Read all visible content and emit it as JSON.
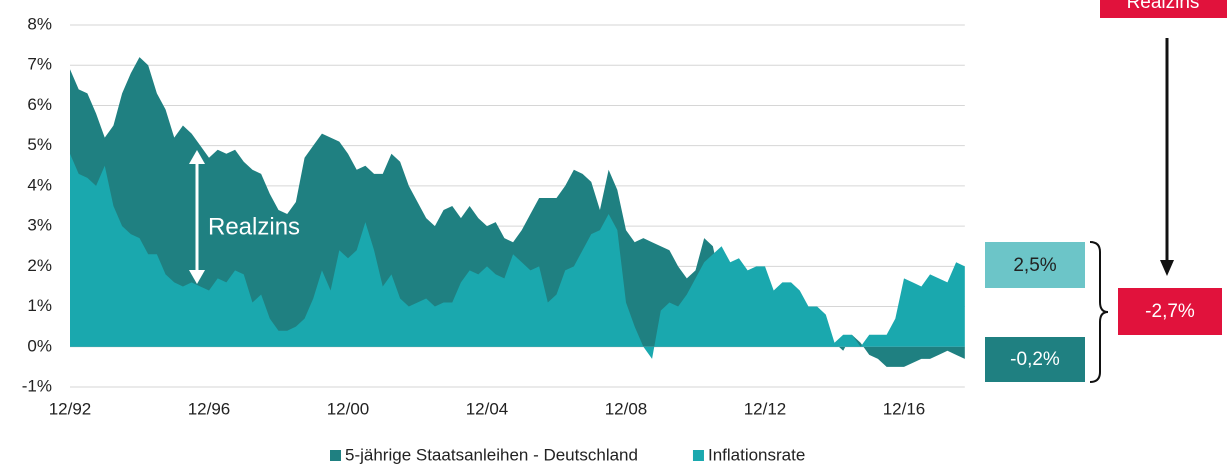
{
  "chart_data": {
    "type": "area",
    "categories": [
      "12/92",
      null,
      null,
      null,
      null,
      null,
      null,
      null,
      null,
      null,
      null,
      null,
      null,
      null,
      null,
      null,
      "12/96",
      null,
      null,
      null,
      null,
      null,
      null,
      null,
      null,
      null,
      null,
      null,
      null,
      null,
      null,
      null,
      "12/00",
      null,
      null,
      null,
      null,
      null,
      null,
      null,
      null,
      null,
      null,
      null,
      null,
      null,
      null,
      null,
      "12/04",
      null,
      null,
      null,
      null,
      null,
      null,
      null,
      null,
      null,
      null,
      null,
      null,
      null,
      null,
      null,
      "12/08",
      null,
      null,
      null,
      null,
      null,
      null,
      null,
      null,
      null,
      null,
      null,
      null,
      null,
      null,
      null,
      "12/12",
      null,
      null,
      null,
      null,
      null,
      null,
      null,
      null,
      null,
      null,
      null,
      null,
      null,
      null,
      null,
      "12/16",
      null,
      null,
      null,
      null,
      null,
      null,
      null
    ],
    "series": [
      {
        "name": "5-jährige Staatsanleihen - Deutschland",
        "color": "#1f8081",
        "values": [
          6.9,
          6.4,
          6.3,
          5.8,
          5.2,
          5.5,
          6.3,
          6.8,
          7.2,
          7.0,
          6.3,
          5.9,
          5.2,
          5.5,
          5.3,
          5.0,
          4.7,
          4.9,
          4.8,
          4.9,
          4.6,
          4.4,
          4.3,
          3.8,
          3.4,
          3.3,
          3.6,
          4.7,
          5.0,
          5.3,
          5.2,
          5.1,
          4.8,
          4.4,
          4.5,
          4.3,
          4.3,
          4.8,
          4.6,
          4.0,
          3.6,
          3.2,
          3.0,
          3.4,
          3.5,
          3.2,
          3.5,
          3.2,
          3.0,
          3.1,
          2.7,
          2.6,
          2.9,
          3.3,
          3.7,
          3.7,
          3.7,
          4.0,
          4.4,
          4.3,
          4.1,
          3.4,
          4.4,
          3.9,
          2.9,
          2.6,
          2.7,
          2.6,
          2.5,
          2.4,
          2.0,
          1.7,
          1.9,
          2.7,
          2.5,
          1.5,
          1.0,
          0.9,
          0.5,
          0.5,
          0.3,
          0.5,
          0.6,
          0.9,
          0.9,
          0.8,
          0.6,
          0.3,
          0.1,
          -0.1,
          0.3,
          0.1,
          -0.2,
          -0.3,
          -0.5,
          -0.5,
          -0.5,
          -0.4,
          -0.3,
          -0.3,
          -0.2,
          -0.1,
          -0.2,
          -0.3
        ]
      },
      {
        "name": "Inflationsrate",
        "color": "#1aa8ae",
        "values": [
          4.8,
          4.3,
          4.2,
          4.0,
          4.5,
          3.5,
          3.0,
          2.8,
          2.7,
          2.3,
          2.3,
          1.8,
          1.6,
          1.5,
          1.6,
          1.5,
          1.4,
          1.7,
          1.6,
          1.9,
          1.8,
          1.1,
          1.3,
          0.7,
          0.4,
          0.4,
          0.5,
          0.7,
          1.2,
          1.9,
          1.4,
          2.4,
          2.2,
          2.4,
          3.1,
          2.4,
          1.5,
          1.8,
          1.2,
          1.0,
          1.1,
          1.2,
          1.0,
          1.1,
          1.1,
          1.6,
          1.9,
          1.8,
          2.0,
          1.8,
          1.7,
          2.3,
          2.1,
          1.9,
          2.0,
          1.1,
          1.3,
          1.9,
          2.0,
          2.4,
          2.8,
          2.9,
          3.3,
          2.9,
          1.1,
          0.5,
          0.0,
          -0.3,
          0.9,
          1.1,
          1.0,
          1.3,
          1.7,
          2.1,
          2.3,
          2.5,
          2.1,
          2.2,
          1.9,
          2.0,
          2.0,
          1.4,
          1.6,
          1.6,
          1.4,
          1.0,
          1.0,
          0.8,
          0.1,
          0.3,
          0.3,
          0.0,
          0.3,
          0.3,
          0.3,
          0.7,
          1.7,
          1.6,
          1.5,
          1.8,
          1.7,
          1.6,
          2.1,
          2.0
        ]
      }
    ],
    "ylim": [
      -1,
      8
    ],
    "yticks": [
      {
        "value": -1,
        "label": "-1%"
      },
      {
        "value": 0,
        "label": "0%"
      },
      {
        "value": 1,
        "label": "1%"
      },
      {
        "value": 2,
        "label": "2%"
      },
      {
        "value": 3,
        "label": "3%"
      },
      {
        "value": 4,
        "label": "4%"
      },
      {
        "value": 5,
        "label": "5%"
      },
      {
        "value": 6,
        "label": "6%"
      },
      {
        "value": 7,
        "label": "7%"
      },
      {
        "value": 8,
        "label": "8%"
      }
    ],
    "grid": true,
    "legend": "bottom",
    "annotations": {
      "realzins_label": "Realzins",
      "inflation_box": "2,5%",
      "bond_box": "-0,2%",
      "real_rate_box": "-2,7%",
      "realzins_header": "Realzins"
    }
  }
}
